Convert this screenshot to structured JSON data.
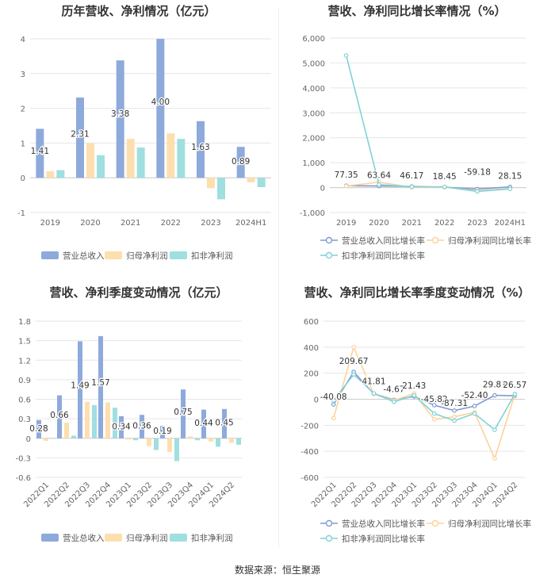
{
  "colors": {
    "revenue": "#8eaadb",
    "parent": "#fddfaf",
    "nonrecur": "#9fdfe0",
    "grid": "#e6e6e6",
    "axis_text": "#666666"
  },
  "source": "数据来源：恒生聚源",
  "chart_data": [
    {
      "type": "bar",
      "title": "历年营收、净利情况（亿元）",
      "categories": [
        "2019",
        "2020",
        "2021",
        "2022",
        "2023",
        "2024H1"
      ],
      "ylim": [
        -1,
        4
      ],
      "yticks": [
        -1,
        0,
        1,
        2,
        3,
        4
      ],
      "series": [
        {
          "name": "营业总收入",
          "values": [
            1.41,
            2.31,
            3.38,
            4.0,
            1.63,
            0.89
          ]
        },
        {
          "name": "归母净利润",
          "values": [
            0.19,
            0.99,
            1.12,
            1.28,
            -0.3,
            -0.13
          ]
        },
        {
          "name": "扣非净利润",
          "values": [
            0.22,
            0.65,
            0.87,
            1.12,
            -0.62,
            -0.27
          ]
        }
      ],
      "data_labels": [
        "1.41",
        "2.31",
        "3.38",
        "4.00",
        "1.63",
        "0.89"
      ],
      "legend": "bottom",
      "grid": true
    },
    {
      "type": "line",
      "title": "营收、净利同比增长率情况（%）",
      "categories": [
        "2019",
        "2020",
        "2021",
        "2022",
        "2023",
        "2024H1"
      ],
      "ylim": [
        -1000,
        6000
      ],
      "yticks": [
        "-1,000",
        "0",
        "1,000",
        "2,000",
        "3,000",
        "4,000",
        "5,000",
        "6,000"
      ],
      "series": [
        {
          "name": "营业总收入同比增长率",
          "values": [
            77.35,
            63.64,
            46.17,
            18.45,
            -59.18,
            28.15
          ]
        },
        {
          "name": "归母净利润同比增长率",
          "values": [
            60,
            220,
            13,
            14,
            -123,
            -40
          ]
        },
        {
          "name": "扣非净利润同比增长率",
          "values": [
            5300,
            120,
            34,
            29,
            -156,
            -55
          ]
        }
      ],
      "data_labels": [
        "77.35",
        "63.64",
        "46.17",
        "18.45",
        "-59.18",
        "28.15"
      ],
      "legend": "bottom",
      "grid": true
    },
    {
      "type": "bar",
      "title": "营收、净利季度变动情况（亿元）",
      "categories": [
        "2022Q1",
        "2022Q2",
        "2022Q3",
        "2022Q4",
        "2023Q1",
        "2023Q2",
        "2023Q3",
        "2023Q4",
        "2024Q1",
        "2024Q2"
      ],
      "ylim": [
        -0.6,
        1.8
      ],
      "yticks": [
        "-0.6",
        "-0.3",
        "0",
        "0.3",
        "0.6",
        "0.9",
        "1.2",
        "1.5",
        "1.8"
      ],
      "series": [
        {
          "name": "营业总收入",
          "values": [
            0.28,
            0.66,
            1.49,
            1.57,
            0.34,
            0.36,
            0.19,
            0.75,
            0.44,
            0.45
          ]
        },
        {
          "name": "归母净利润",
          "values": [
            -0.04,
            0.24,
            0.56,
            0.55,
            -0.02,
            -0.12,
            -0.21,
            0.03,
            -0.05,
            -0.07
          ]
        },
        {
          "name": "扣非净利润",
          "values": [
            0.0,
            0.04,
            0.51,
            0.47,
            -0.03,
            -0.18,
            -0.35,
            -0.03,
            -0.13,
            -0.1
          ]
        }
      ],
      "data_labels": [
        "0.28",
        "0.66",
        "1.49",
        "1.57",
        "0.34",
        "0.36",
        "0.19",
        "0.75",
        "0.44",
        "0.45"
      ],
      "legend": "bottom",
      "grid": true
    },
    {
      "type": "line",
      "title": "营收、净利同比增长率季度变动情况（%）",
      "categories": [
        "2022Q1",
        "2022Q2",
        "2022Q3",
        "2022Q4",
        "2023Q1",
        "2023Q2",
        "2023Q3",
        "2023Q4",
        "2024Q1",
        "2024Q2"
      ],
      "ylim": [
        -600,
        600
      ],
      "yticks": [
        "-600",
        "-400",
        "-200",
        "0",
        "200",
        "400",
        "600"
      ],
      "series": [
        {
          "name": "营业总收入同比增长率",
          "values": [
            -40.08,
            209.67,
            41.81,
            -4.67,
            21.43,
            -45.82,
            -87.31,
            -52.4,
            29.81,
            26.57
          ]
        },
        {
          "name": "归母净利润同比增长率",
          "values": [
            -145,
            400,
            40,
            -10,
            45,
            -155,
            -135,
            -100,
            -455,
            35
          ]
        },
        {
          "name": "扣非净利润同比增长率",
          "values": [
            -10,
            190,
            45,
            -20,
            30,
            -110,
            -165,
            -110,
            -235,
            40
          ]
        }
      ],
      "data_labels": [
        "-40.08",
        "209.67",
        "41.81",
        "-4.67",
        "21.43",
        "-45.82",
        "-87.31",
        "-52.40",
        "29.81",
        "26.57"
      ],
      "legend": "bottom",
      "grid": true
    }
  ]
}
